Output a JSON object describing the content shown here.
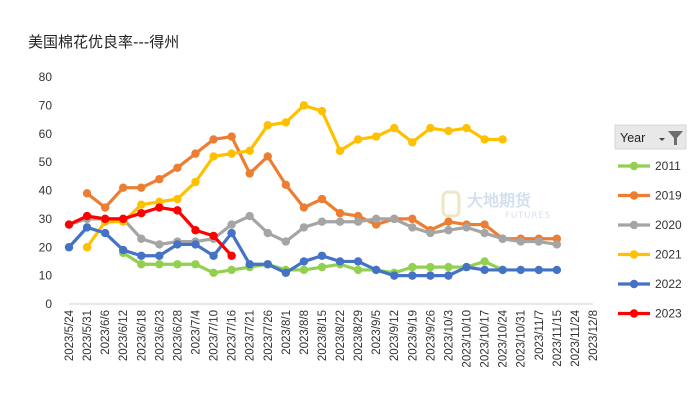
{
  "chart_data": {
    "type": "line",
    "title": "美国棉花优良率---得州",
    "xlabel": "",
    "ylabel": "",
    "ylim": [
      0,
      80
    ],
    "yticks": [
      0,
      10,
      20,
      30,
      40,
      50,
      60,
      70,
      80
    ],
    "grid": false,
    "legend_title": "Year",
    "legend_position": "right",
    "categories": [
      "2023/5/24",
      "2023/5/31",
      "2023/6/6",
      "2023/6/12",
      "2023/6/18",
      "2023/6/23",
      "2023/6/28",
      "2023/7/4",
      "2023/7/10",
      "2023/7/16",
      "2023/7/21",
      "2023/7/26",
      "2023/8/1",
      "2023/8/8",
      "2023/8/15",
      "2023/8/22",
      "2023/8/29",
      "2023/9/5",
      "2023/9/12",
      "2023/9/19",
      "2023/9/26",
      "2023/10/3",
      "2023/10/10",
      "2023/10/17",
      "2023/10/24",
      "2023/10/31",
      "2023/11/7",
      "2023/11/15",
      "2023/11/24",
      "2023/12/8"
    ],
    "series": [
      {
        "name": "2011",
        "color": "#92d050",
        "values": [
          null,
          null,
          null,
          18,
          14,
          14,
          14,
          14,
          11,
          12,
          13,
          14,
          12,
          12,
          13,
          14,
          12,
          12,
          11,
          13,
          13,
          13,
          13,
          15,
          12,
          null,
          null,
          null,
          null,
          null
        ]
      },
      {
        "name": "2019",
        "color": "#ed7d31",
        "values": [
          null,
          39,
          34,
          41,
          41,
          44,
          48,
          53,
          58,
          59,
          46,
          52,
          42,
          34,
          37,
          32,
          31,
          28,
          30,
          30,
          26,
          29,
          28,
          28,
          23,
          23,
          23,
          23,
          null,
          null
        ]
      },
      {
        "name": "2020",
        "color": "#a5a5a5",
        "values": [
          28,
          30,
          30,
          30,
          23,
          21,
          22,
          22,
          23,
          28,
          31,
          25,
          22,
          27,
          29,
          29,
          29,
          30,
          30,
          27,
          25,
          26,
          27,
          25,
          23,
          22,
          22,
          21,
          null,
          null
        ]
      },
      {
        "name": "2021",
        "color": "#ffc000",
        "values": [
          null,
          20,
          29,
          29,
          35,
          36,
          37,
          43,
          52,
          53,
          54,
          63,
          64,
          70,
          68,
          54,
          58,
          59,
          62,
          57,
          62,
          61,
          62,
          58,
          58,
          null,
          null,
          null,
          null,
          null
        ]
      },
      {
        "name": "2022",
        "color": "#4472c4",
        "values": [
          20,
          27,
          25,
          19,
          17,
          17,
          21,
          21,
          17,
          25,
          14,
          14,
          11,
          15,
          17,
          15,
          15,
          12,
          10,
          10,
          10,
          10,
          13,
          12,
          12,
          12,
          12,
          12,
          null,
          null
        ]
      },
      {
        "name": "2023",
        "color": "#ff0000",
        "values": [
          28,
          31,
          30,
          30,
          32,
          34,
          33,
          26,
          24,
          17,
          null,
          null,
          null,
          null,
          null,
          null,
          null,
          null,
          null,
          null,
          null,
          null,
          null,
          null,
          null,
          null,
          null,
          null,
          null,
          null
        ]
      }
    ]
  },
  "watermark": {
    "text": "大地期货",
    "subtext": "FUTURES"
  }
}
